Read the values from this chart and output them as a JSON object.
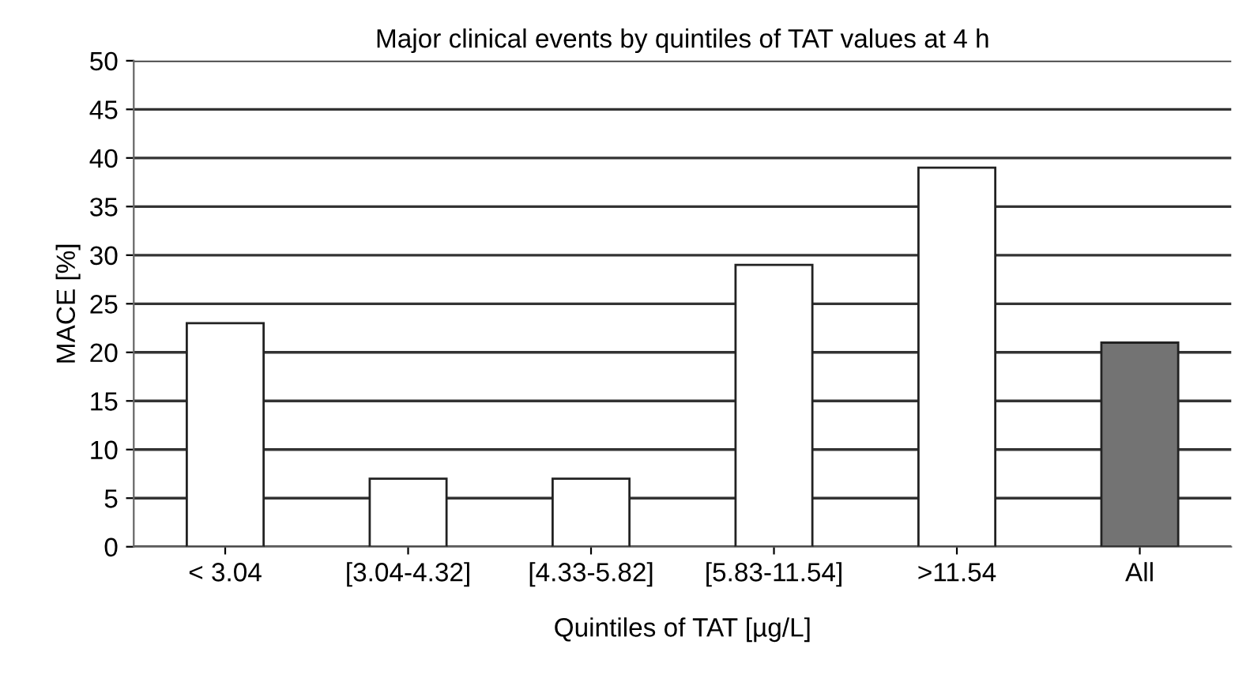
{
  "chart_data": {
    "type": "bar",
    "title": "Major clinical events by quintiles of TAT values at 4 h",
    "xlabel": "Quintiles of TAT [µg/L]",
    "ylabel": "MACE [%]",
    "categories": [
      "< 3.04",
      "[3.04-4.32]",
      "[4.33-5.82]",
      "[5.83-11.54]",
      ">11.54",
      "All"
    ],
    "values": [
      23,
      7,
      7,
      29,
      39,
      21
    ],
    "colors": [
      "#ffffff",
      "#ffffff",
      "#ffffff",
      "#ffffff",
      "#ffffff",
      "#737373"
    ],
    "ylim": [
      0,
      50
    ],
    "yticks": [
      0,
      5,
      10,
      15,
      20,
      25,
      30,
      35,
      40,
      45,
      50
    ],
    "grid": "y"
  }
}
